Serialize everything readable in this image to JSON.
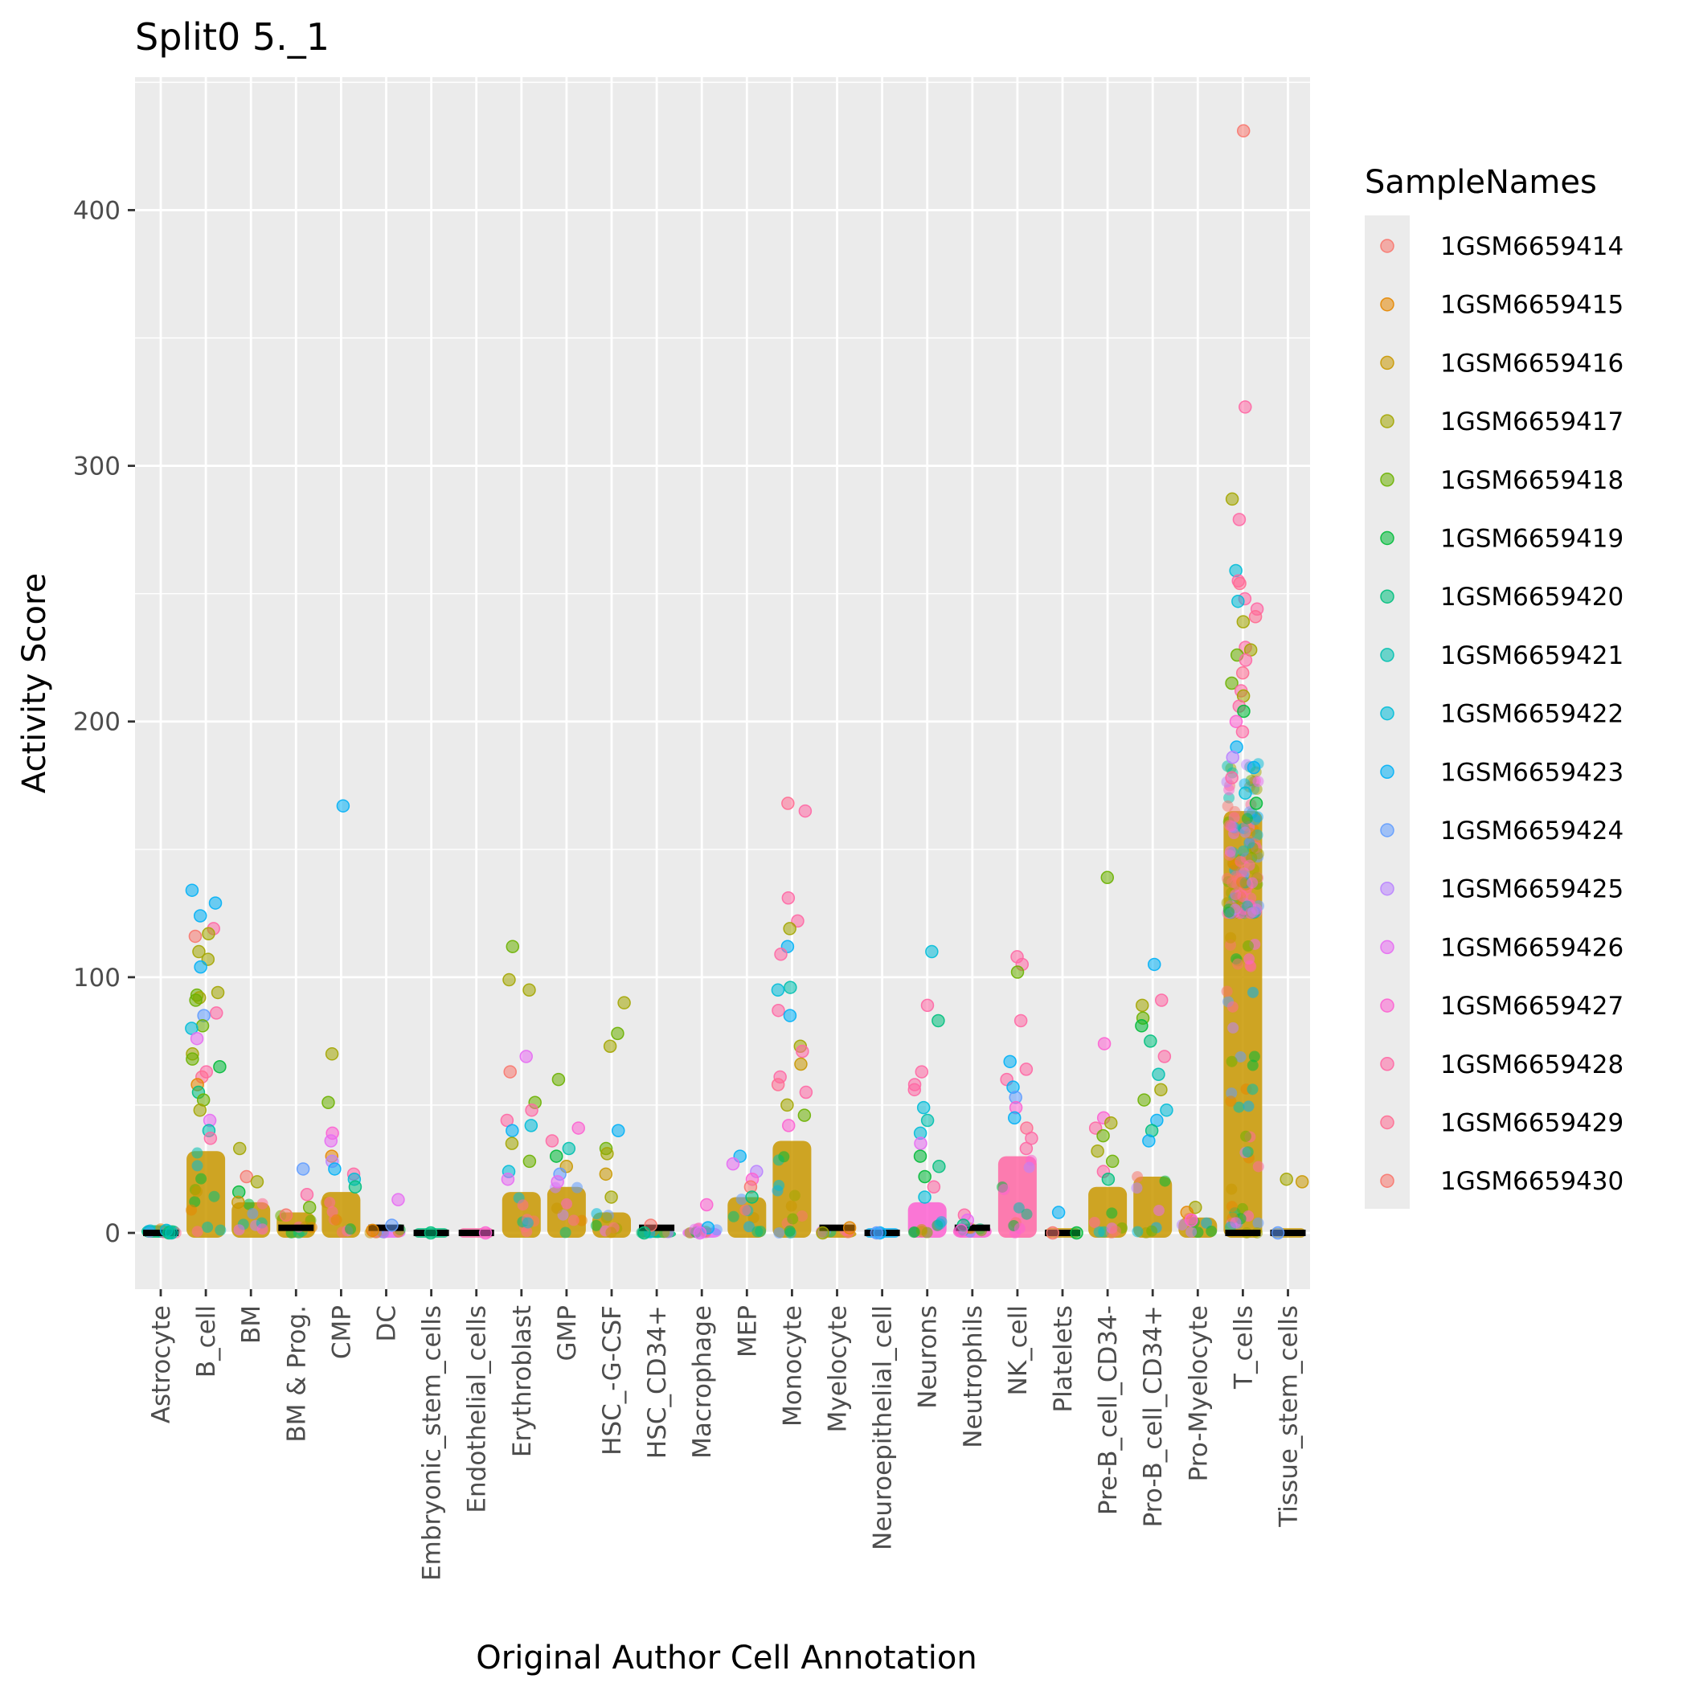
{
  "chart_data": {
    "type": "scatter",
    "title": "Split0 5._1",
    "xlabel": "Original Author Cell Annotation",
    "ylabel": "Activity Score",
    "ylim": [
      -22,
      452
    ],
    "yticks": [
      0,
      100,
      200,
      300,
      400
    ],
    "grid": true,
    "legend_title": "SampleNames",
    "legend_position": "right",
    "categories": [
      "Astrocyte",
      "B_cell",
      "BM",
      "BM & Prog.",
      "CMP",
      "DC",
      "Embryonic_stem_cells",
      "Endothelial_cells",
      "Erythroblast",
      "GMP",
      "HSC_-G-CSF",
      "HSC_CD34+",
      "Macrophage",
      "MEP",
      "Monocyte",
      "Myelocyte",
      "Neuroepithelial_cell",
      "Neurons",
      "Neutrophils",
      "NK_cell",
      "Platelets",
      "Pre-B_cell_CD34-",
      "Pro-B_cell_CD34+",
      "Pro-Myelocyte",
      "T_cells",
      "Tissue_stem_cells"
    ],
    "series": [
      {
        "name": "1GSM6659414",
        "color": "#F8766D"
      },
      {
        "name": "1GSM6659415",
        "color": "#E58700"
      },
      {
        "name": "1GSM6659416",
        "color": "#C99800"
      },
      {
        "name": "1GSM6659417",
        "color": "#A3A500"
      },
      {
        "name": "1GSM6659418",
        "color": "#6BB100"
      },
      {
        "name": "1GSM6659419",
        "color": "#00BA38"
      },
      {
        "name": "1GSM6659420",
        "color": "#00BF7D"
      },
      {
        "name": "1GSM6659421",
        "color": "#00C0AF"
      },
      {
        "name": "1GSM6659422",
        "color": "#00BCD8"
      },
      {
        "name": "1GSM6659423",
        "color": "#00B0F6"
      },
      {
        "name": "1GSM6659424",
        "color": "#619CFF"
      },
      {
        "name": "1GSM6659425",
        "color": "#B983FF"
      },
      {
        "name": "1GSM6659426",
        "color": "#E76BF3"
      },
      {
        "name": "1GSM6659427",
        "color": "#FD61D1"
      },
      {
        "name": "1GSM6659428",
        "color": "#FF67A4"
      },
      {
        "name": "1GSM6659429",
        "color": "#FF6C91"
      },
      {
        "name": "1GSM6659430",
        "color": "#F8766D"
      }
    ],
    "points": [
      [
        "B_cell",
        134,
        9
      ],
      [
        "B_cell",
        129,
        9
      ],
      [
        "B_cell",
        124,
        9
      ],
      [
        "B_cell",
        119,
        14
      ],
      [
        "B_cell",
        117,
        3
      ],
      [
        "B_cell",
        116,
        0
      ],
      [
        "B_cell",
        110,
        3
      ],
      [
        "B_cell",
        107,
        3
      ],
      [
        "B_cell",
        104,
        9
      ],
      [
        "B_cell",
        94,
        3
      ],
      [
        "B_cell",
        93,
        4
      ],
      [
        "B_cell",
        92,
        3
      ],
      [
        "B_cell",
        91,
        4
      ],
      [
        "B_cell",
        86,
        14
      ],
      [
        "B_cell",
        85,
        10
      ],
      [
        "B_cell",
        81,
        4
      ],
      [
        "B_cell",
        80,
        8
      ],
      [
        "B_cell",
        76,
        12
      ],
      [
        "B_cell",
        70,
        3
      ],
      [
        "B_cell",
        68,
        4
      ],
      [
        "B_cell",
        65,
        5
      ],
      [
        "B_cell",
        63,
        14
      ],
      [
        "B_cell",
        61,
        15
      ],
      [
        "B_cell",
        58,
        1
      ],
      [
        "B_cell",
        55,
        6
      ],
      [
        "B_cell",
        52,
        4
      ],
      [
        "B_cell",
        48,
        3
      ],
      [
        "B_cell",
        44,
        12
      ],
      [
        "B_cell",
        40,
        7
      ],
      [
        "B_cell",
        37,
        14
      ],
      [
        "BM",
        33,
        3
      ],
      [
        "BM",
        22,
        0
      ],
      [
        "BM",
        20,
        3
      ],
      [
        "BM",
        16,
        5
      ],
      [
        "BM",
        12,
        2
      ],
      [
        "BM & Prog.",
        15,
        14
      ],
      [
        "BM & Prog.",
        10,
        4
      ],
      [
        "BM & Prog.",
        7,
        0
      ],
      [
        "CMP",
        167,
        9
      ],
      [
        "CMP",
        70,
        3
      ],
      [
        "CMP",
        51,
        4
      ],
      [
        "CMP",
        39,
        13
      ],
      [
        "CMP",
        36,
        12
      ],
      [
        "CMP",
        30,
        1
      ],
      [
        "CMP",
        28,
        11
      ],
      [
        "CMP",
        25,
        9
      ],
      [
        "CMP",
        23,
        14
      ],
      [
        "CMP",
        21,
        8
      ],
      [
        "CMP",
        18,
        6
      ],
      [
        "BM & Prog.",
        25,
        10
      ],
      [
        "DC",
        13,
        12
      ],
      [
        "DC",
        3,
        10
      ],
      [
        "DC",
        1,
        1
      ],
      [
        "Embryonic_stem_cells",
        0,
        6
      ],
      [
        "Endothelial_cells",
        0,
        13
      ],
      [
        "Erythroblast",
        112,
        4
      ],
      [
        "Erythroblast",
        99,
        3
      ],
      [
        "Erythroblast",
        95,
        3
      ],
      [
        "Erythroblast",
        69,
        12
      ],
      [
        "Erythroblast",
        63,
        0
      ],
      [
        "Erythroblast",
        51,
        4
      ],
      [
        "Erythroblast",
        48,
        14
      ],
      [
        "Erythroblast",
        44,
        14
      ],
      [
        "Erythroblast",
        42,
        8
      ],
      [
        "Erythroblast",
        40,
        9
      ],
      [
        "Erythroblast",
        35,
        3
      ],
      [
        "Erythroblast",
        28,
        4
      ],
      [
        "Erythroblast",
        24,
        8
      ],
      [
        "Erythroblast",
        21,
        12
      ],
      [
        "GMP",
        60,
        4
      ],
      [
        "GMP",
        41,
        13
      ],
      [
        "GMP",
        36,
        14
      ],
      [
        "GMP",
        33,
        7
      ],
      [
        "GMP",
        30,
        5
      ],
      [
        "GMP",
        26,
        2
      ],
      [
        "GMP",
        23,
        10
      ],
      [
        "GMP",
        20,
        12
      ],
      [
        "HSC_-G-CSF",
        90,
        3
      ],
      [
        "HSC_-G-CSF",
        78,
        4
      ],
      [
        "HSC_-G-CSF",
        73,
        3
      ],
      [
        "HSC_-G-CSF",
        40,
        9
      ],
      [
        "HSC_-G-CSF",
        33,
        4
      ],
      [
        "HSC_-G-CSF",
        31,
        3
      ],
      [
        "HSC_-G-CSF",
        23,
        2
      ],
      [
        "HSC_-G-CSF",
        14,
        3
      ],
      [
        "HSC_CD34+",
        3,
        0
      ],
      [
        "HSC_CD34+",
        0,
        6
      ],
      [
        "Macrophage",
        11,
        13
      ],
      [
        "Macrophage",
        2,
        9
      ],
      [
        "Macrophage",
        0,
        12
      ],
      [
        "MEP",
        30,
        9
      ],
      [
        "MEP",
        27,
        12
      ],
      [
        "MEP",
        24,
        11
      ],
      [
        "MEP",
        21,
        13
      ],
      [
        "MEP",
        18,
        0
      ],
      [
        "MEP",
        14,
        6
      ],
      [
        "Monocyte",
        168,
        15
      ],
      [
        "Monocyte",
        165,
        14
      ],
      [
        "Monocyte",
        131,
        14
      ],
      [
        "Monocyte",
        122,
        14
      ],
      [
        "Monocyte",
        119,
        3
      ],
      [
        "Monocyte",
        112,
        9
      ],
      [
        "Monocyte",
        109,
        14
      ],
      [
        "Monocyte",
        96,
        7
      ],
      [
        "Monocyte",
        95,
        8
      ],
      [
        "Monocyte",
        87,
        14
      ],
      [
        "Monocyte",
        85,
        9
      ],
      [
        "Monocyte",
        73,
        3
      ],
      [
        "Monocyte",
        71,
        14
      ],
      [
        "Monocyte",
        66,
        2
      ],
      [
        "Monocyte",
        61,
        14
      ],
      [
        "Monocyte",
        58,
        15
      ],
      [
        "Monocyte",
        55,
        14
      ],
      [
        "Monocyte",
        50,
        3
      ],
      [
        "Monocyte",
        46,
        4
      ],
      [
        "Monocyte",
        42,
        13
      ],
      [
        "Myelocyte",
        2,
        1
      ],
      [
        "Myelocyte",
        0,
        3
      ],
      [
        "Neuroepithelial_cell",
        0,
        9
      ],
      [
        "Neuroepithelial_cell",
        0,
        10
      ],
      [
        "Neurons",
        110,
        8
      ],
      [
        "Neurons",
        89,
        14
      ],
      [
        "Neurons",
        83,
        6
      ],
      [
        "Neurons",
        63,
        14
      ],
      [
        "Neurons",
        58,
        14
      ],
      [
        "Neurons",
        56,
        14
      ],
      [
        "Neurons",
        49,
        8
      ],
      [
        "Neurons",
        44,
        7
      ],
      [
        "Neurons",
        39,
        8
      ],
      [
        "Neurons",
        35,
        12
      ],
      [
        "Neurons",
        30,
        5
      ],
      [
        "Neurons",
        26,
        6
      ],
      [
        "Neurons",
        22,
        5
      ],
      [
        "Neurons",
        18,
        14
      ],
      [
        "Neurons",
        14,
        8
      ],
      [
        "Neutrophils",
        7,
        14
      ],
      [
        "Neutrophils",
        5,
        12
      ],
      [
        "Neutrophils",
        3,
        6
      ],
      [
        "Neutrophils",
        1,
        13
      ],
      [
        "NK_cell",
        108,
        14
      ],
      [
        "NK_cell",
        105,
        14
      ],
      [
        "NK_cell",
        102,
        4
      ],
      [
        "NK_cell",
        83,
        14
      ],
      [
        "NK_cell",
        67,
        9
      ],
      [
        "NK_cell",
        64,
        14
      ],
      [
        "NK_cell",
        60,
        14
      ],
      [
        "NK_cell",
        57,
        9
      ],
      [
        "NK_cell",
        53,
        10
      ],
      [
        "NK_cell",
        49,
        13
      ],
      [
        "NK_cell",
        45,
        9
      ],
      [
        "NK_cell",
        41,
        15
      ],
      [
        "NK_cell",
        37,
        14
      ],
      [
        "NK_cell",
        33,
        14
      ],
      [
        "Platelets",
        8,
        9
      ],
      [
        "Platelets",
        0,
        0
      ],
      [
        "Platelets",
        0,
        5
      ],
      [
        "Pre-B_cell_CD34-",
        139,
        4
      ],
      [
        "Pre-B_cell_CD34-",
        74,
        13
      ],
      [
        "Pre-B_cell_CD34-",
        45,
        13
      ],
      [
        "Pre-B_cell_CD34-",
        43,
        3
      ],
      [
        "Pre-B_cell_CD34-",
        41,
        14
      ],
      [
        "Pre-B_cell_CD34-",
        38,
        4
      ],
      [
        "Pre-B_cell_CD34-",
        32,
        3
      ],
      [
        "Pre-B_cell_CD34-",
        28,
        4
      ],
      [
        "Pre-B_cell_CD34-",
        24,
        14
      ],
      [
        "Pre-B_cell_CD34-",
        21,
        6
      ],
      [
        "Pro-B_cell_CD34+",
        105,
        9
      ],
      [
        "Pro-B_cell_CD34+",
        91,
        14
      ],
      [
        "Pro-B_cell_CD34+",
        89,
        3
      ],
      [
        "Pro-B_cell_CD34+",
        84,
        4
      ],
      [
        "Pro-B_cell_CD34+",
        81,
        5
      ],
      [
        "Pro-B_cell_CD34+",
        75,
        6
      ],
      [
        "Pro-B_cell_CD34+",
        69,
        14
      ],
      [
        "Pro-B_cell_CD34+",
        62,
        7
      ],
      [
        "Pro-B_cell_CD34+",
        56,
        3
      ],
      [
        "Pro-B_cell_CD34+",
        52,
        4
      ],
      [
        "Pro-B_cell_CD34+",
        48,
        8
      ],
      [
        "Pro-B_cell_CD34+",
        44,
        9
      ],
      [
        "Pro-B_cell_CD34+",
        40,
        6
      ],
      [
        "Pro-B_cell_CD34+",
        36,
        9
      ],
      [
        "Pro-Myelocyte",
        10,
        3
      ],
      [
        "Pro-Myelocyte",
        8,
        1
      ],
      [
        "Pro-Myelocyte",
        5,
        13
      ],
      [
        "T_cells",
        431,
        0
      ],
      [
        "T_cells",
        323,
        14
      ],
      [
        "T_cells",
        287,
        3
      ],
      [
        "T_cells",
        279,
        14
      ],
      [
        "T_cells",
        259,
        8
      ],
      [
        "T_cells",
        255,
        14
      ],
      [
        "T_cells",
        254,
        15
      ],
      [
        "T_cells",
        248,
        14
      ],
      [
        "T_cells",
        247,
        8
      ],
      [
        "T_cells",
        244,
        14
      ],
      [
        "T_cells",
        241,
        15
      ],
      [
        "T_cells",
        239,
        3
      ],
      [
        "T_cells",
        229,
        14
      ],
      [
        "T_cells",
        228,
        3
      ],
      [
        "T_cells",
        226,
        4
      ],
      [
        "T_cells",
        224,
        14
      ],
      [
        "T_cells",
        219,
        15
      ],
      [
        "T_cells",
        215,
        4
      ],
      [
        "T_cells",
        212,
        14
      ],
      [
        "T_cells",
        210,
        3
      ],
      [
        "T_cells",
        206,
        14
      ],
      [
        "T_cells",
        204,
        5
      ],
      [
        "T_cells",
        200,
        13
      ],
      [
        "T_cells",
        196,
        14
      ],
      [
        "T_cells",
        190,
        9
      ],
      [
        "T_cells",
        186,
        11
      ],
      [
        "T_cells",
        182,
        9
      ],
      [
        "T_cells",
        178,
        14
      ],
      [
        "T_cells",
        172,
        8
      ],
      [
        "T_cells",
        168,
        5
      ],
      [
        "Tissue_stem_cells",
        21,
        3
      ],
      [
        "Tissue_stem_cells",
        20,
        2
      ],
      [
        "Tissue_stem_cells",
        0,
        10
      ],
      [
        "Astrocyte",
        1,
        8
      ],
      [
        "Astrocyte",
        0,
        6
      ],
      [
        "Astrocyte",
        0,
        7
      ]
    ],
    "bulk": [
      [
        "Astrocyte",
        0,
        3,
        6
      ],
      [
        "B_cell",
        0,
        32,
        2
      ],
      [
        "BM",
        0,
        12,
        2
      ],
      [
        "BM & Prog.",
        0,
        8,
        2
      ],
      [
        "CMP",
        0,
        16,
        2
      ],
      [
        "DC",
        0,
        2,
        12
      ],
      [
        "Embryonic_stem_cells",
        0,
        0,
        6
      ],
      [
        "Endothelial_cells",
        0,
        0,
        14
      ],
      [
        "Erythroblast",
        0,
        16,
        2
      ],
      [
        "GMP",
        0,
        18,
        2
      ],
      [
        "HSC_-G-CSF",
        0,
        8,
        2
      ],
      [
        "HSC_CD34+",
        0,
        1,
        6
      ],
      [
        "Macrophage",
        0,
        2,
        12
      ],
      [
        "MEP",
        0,
        14,
        2
      ],
      [
        "Monocyte",
        0,
        36,
        2
      ],
      [
        "Myelocyte",
        0,
        1,
        2
      ],
      [
        "Neuroepithelial_cell",
        0,
        0,
        9
      ],
      [
        "Neurons",
        0,
        12,
        13
      ],
      [
        "Neutrophils",
        0,
        3,
        13
      ],
      [
        "NK_cell",
        0,
        30,
        14
      ],
      [
        "Platelets",
        0,
        0,
        2
      ],
      [
        "Pre-B_cell_CD34-",
        0,
        18,
        2
      ],
      [
        "Pro-B_cell_CD34+",
        0,
        22,
        2
      ],
      [
        "Pro-Myelocyte",
        0,
        6,
        2
      ],
      [
        "T_cells",
        0,
        165,
        2
      ],
      [
        "Tissue_stem_cells",
        0,
        0,
        2
      ]
    ],
    "medians": [
      [
        "Astrocyte",
        0
      ],
      [
        "BM & Prog.",
        2
      ],
      [
        "DC",
        2
      ],
      [
        "Embryonic_stem_cells",
        0
      ],
      [
        "Endothelial_cells",
        0
      ],
      [
        "HSC_CD34+",
        2
      ],
      [
        "Myelocyte",
        2
      ],
      [
        "Neuroepithelial_cell",
        0
      ],
      [
        "Neutrophils",
        2
      ],
      [
        "Platelets",
        0
      ],
      [
        "T_cells",
        0
      ],
      [
        "Tissue_stem_cells",
        0
      ]
    ]
  }
}
